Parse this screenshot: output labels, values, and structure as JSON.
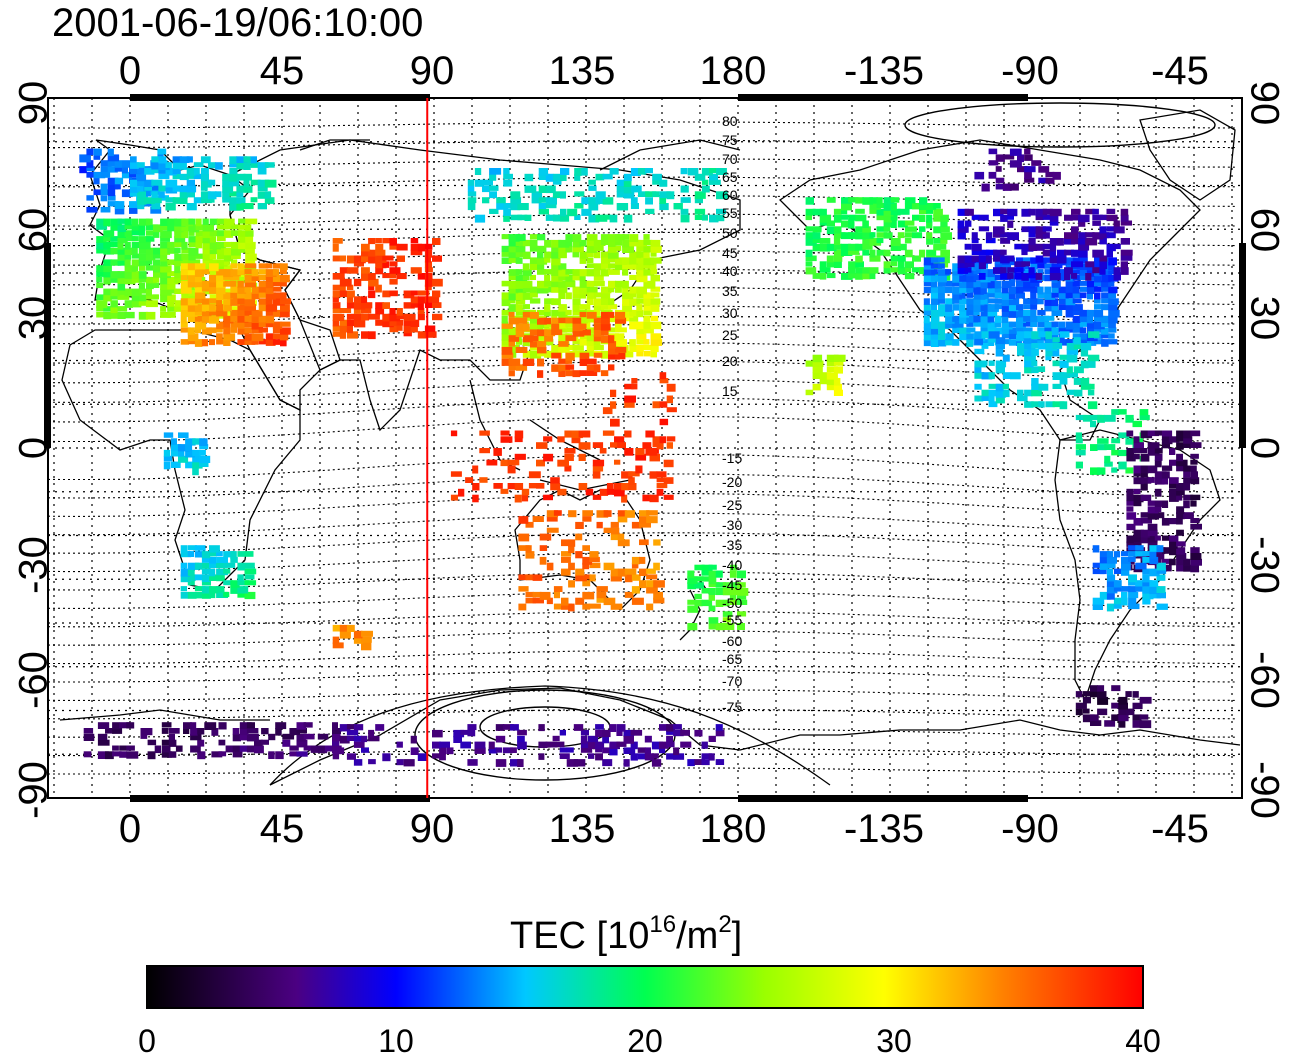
{
  "map": {
    "title": "2001-06-19/06:10:00",
    "lon_ticks": [
      "0",
      "45",
      "90",
      "135",
      "180",
      "-135",
      "-90",
      "-45"
    ],
    "lat_ticks": [
      "90",
      "60",
      "30",
      "0",
      "-30",
      "-60",
      "-90"
    ],
    "contour_labels_north": [
      "80",
      "75",
      "70",
      "65",
      "60",
      "55",
      "50",
      "45",
      "40",
      "35",
      "30",
      "25",
      "20",
      "15"
    ],
    "contour_labels_south": [
      "-15",
      "-20",
      "-25",
      "-30",
      "-35",
      "-40",
      "-45",
      "-50",
      "-55",
      "-60",
      "-65",
      "-70",
      "-75"
    ],
    "terminator_longitude": 88,
    "terminator_color": "#ff0000"
  },
  "colorbar": {
    "title_main": "TEC  [10",
    "title_exp1": "16",
    "title_mid": "/m",
    "title_exp2": "2",
    "title_end": "]",
    "tick_labels": [
      "0",
      "10",
      "20",
      "30",
      "40"
    ],
    "range": [
      0,
      40
    ],
    "colors": [
      "#000000",
      "#4b0082",
      "#0000ff",
      "#00ffff",
      "#00ff00",
      "#ffff00",
      "#ff8000",
      "#ff0000"
    ]
  }
}
